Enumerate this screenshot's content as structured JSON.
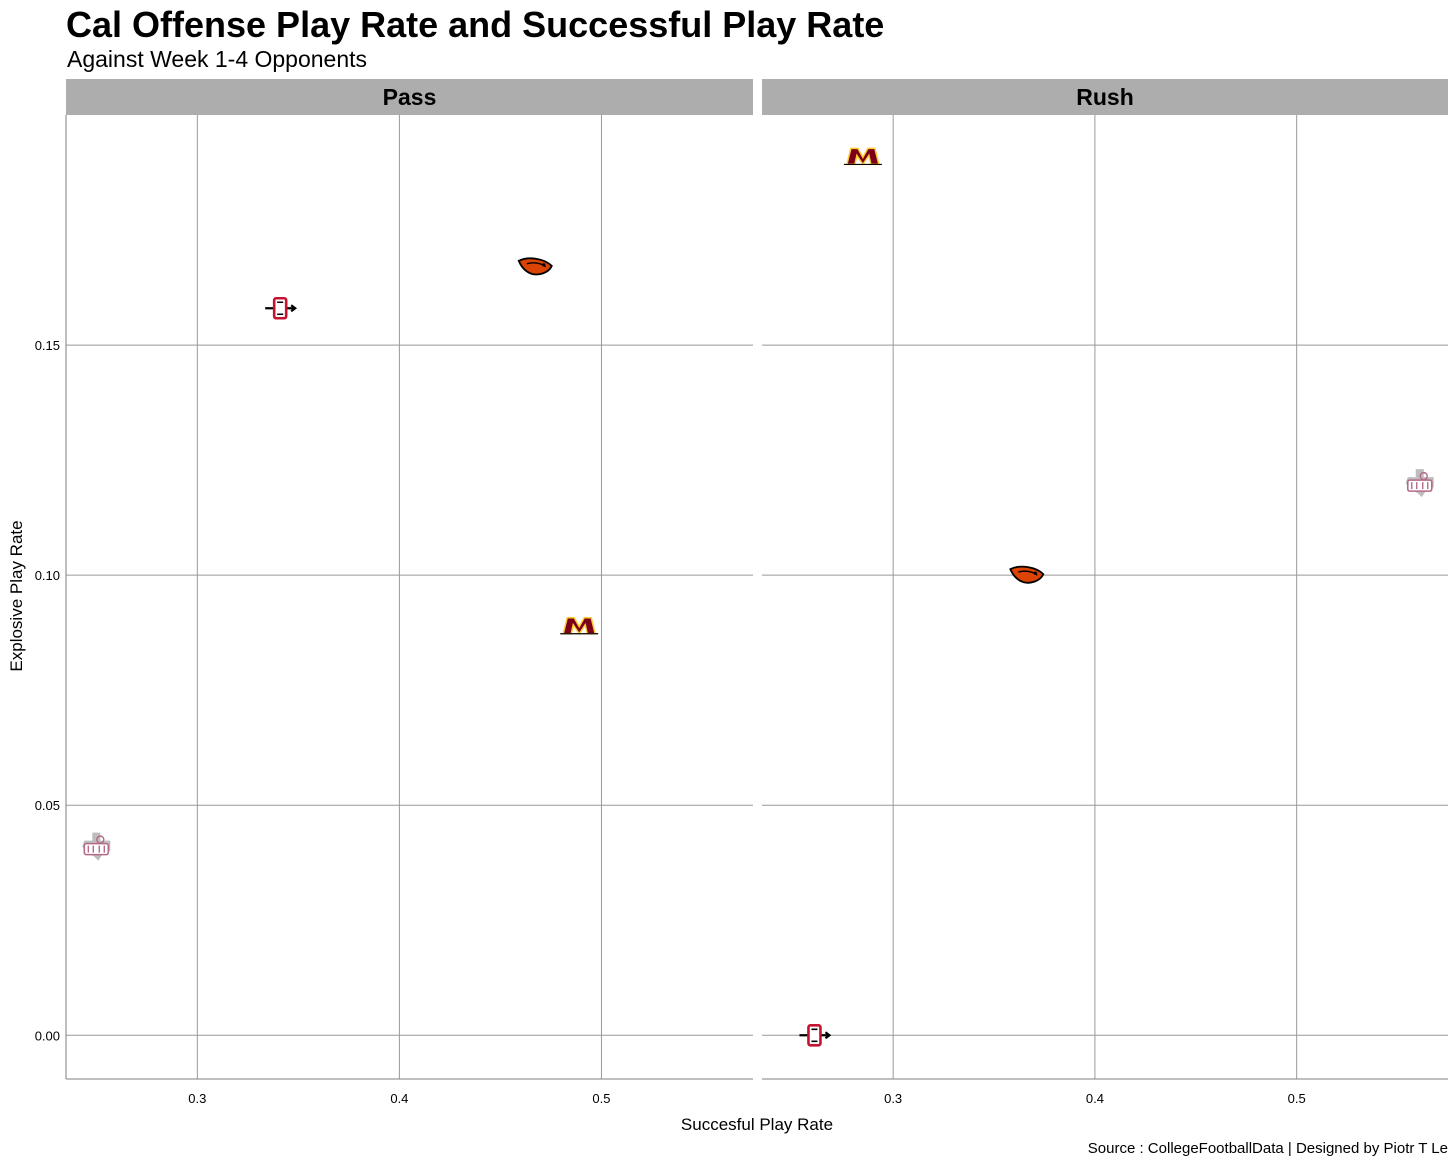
{
  "chart_data": {
    "type": "scatter",
    "title": "Cal Offense Play Rate and Successful Play Rate",
    "subtitle": "Against Week 1-4 Opponents",
    "xlabel": "Succesful Play Rate",
    "ylabel": "Explosive Play Rate",
    "caption": "Source : CollegeFootballData | Designed by Piotr T Le",
    "xlim": [
      0.235,
      0.575
    ],
    "ylim": [
      -0.0095,
      0.2
    ],
    "x_ticks": [
      "0.3",
      "0.4",
      "0.5"
    ],
    "y_ticks": [
      "0.00",
      "0.05",
      "0.10",
      "0.15"
    ],
    "grid": true,
    "facets": [
      {
        "name": "Pass",
        "points": [
          {
            "opponent": "san-diego-state-logo",
            "x": 0.341,
            "y": 0.158
          },
          {
            "opponent": "oregon-state-logo",
            "x": 0.467,
            "y": 0.167
          },
          {
            "opponent": "minnesota-logo",
            "x": 0.489,
            "y": 0.089
          },
          {
            "opponent": "texas-southern-logo",
            "x": 0.25,
            "y": 0.041
          }
        ]
      },
      {
        "name": "Rush",
        "points": [
          {
            "opponent": "minnesota-logo",
            "x": 0.285,
            "y": 0.191
          },
          {
            "opponent": "texas-southern-logo",
            "x": 0.561,
            "y": 0.12
          },
          {
            "opponent": "oregon-state-logo",
            "x": 0.366,
            "y": 0.1
          },
          {
            "opponent": "san-diego-state-logo",
            "x": 0.261,
            "y": 0.0
          }
        ]
      }
    ]
  },
  "colors": {
    "strip": "#adadad",
    "grid": "#999999",
    "frame": "#7f7f7f",
    "minnesota_maroon": "#7a0019",
    "minnesota_gold": "#ffcc33",
    "oregon_orange": "#dc4405",
    "sdsu_red": "#c41230",
    "txsu_maroon": "#b46a8a",
    "txsu_grey": "#a7a7a7"
  }
}
